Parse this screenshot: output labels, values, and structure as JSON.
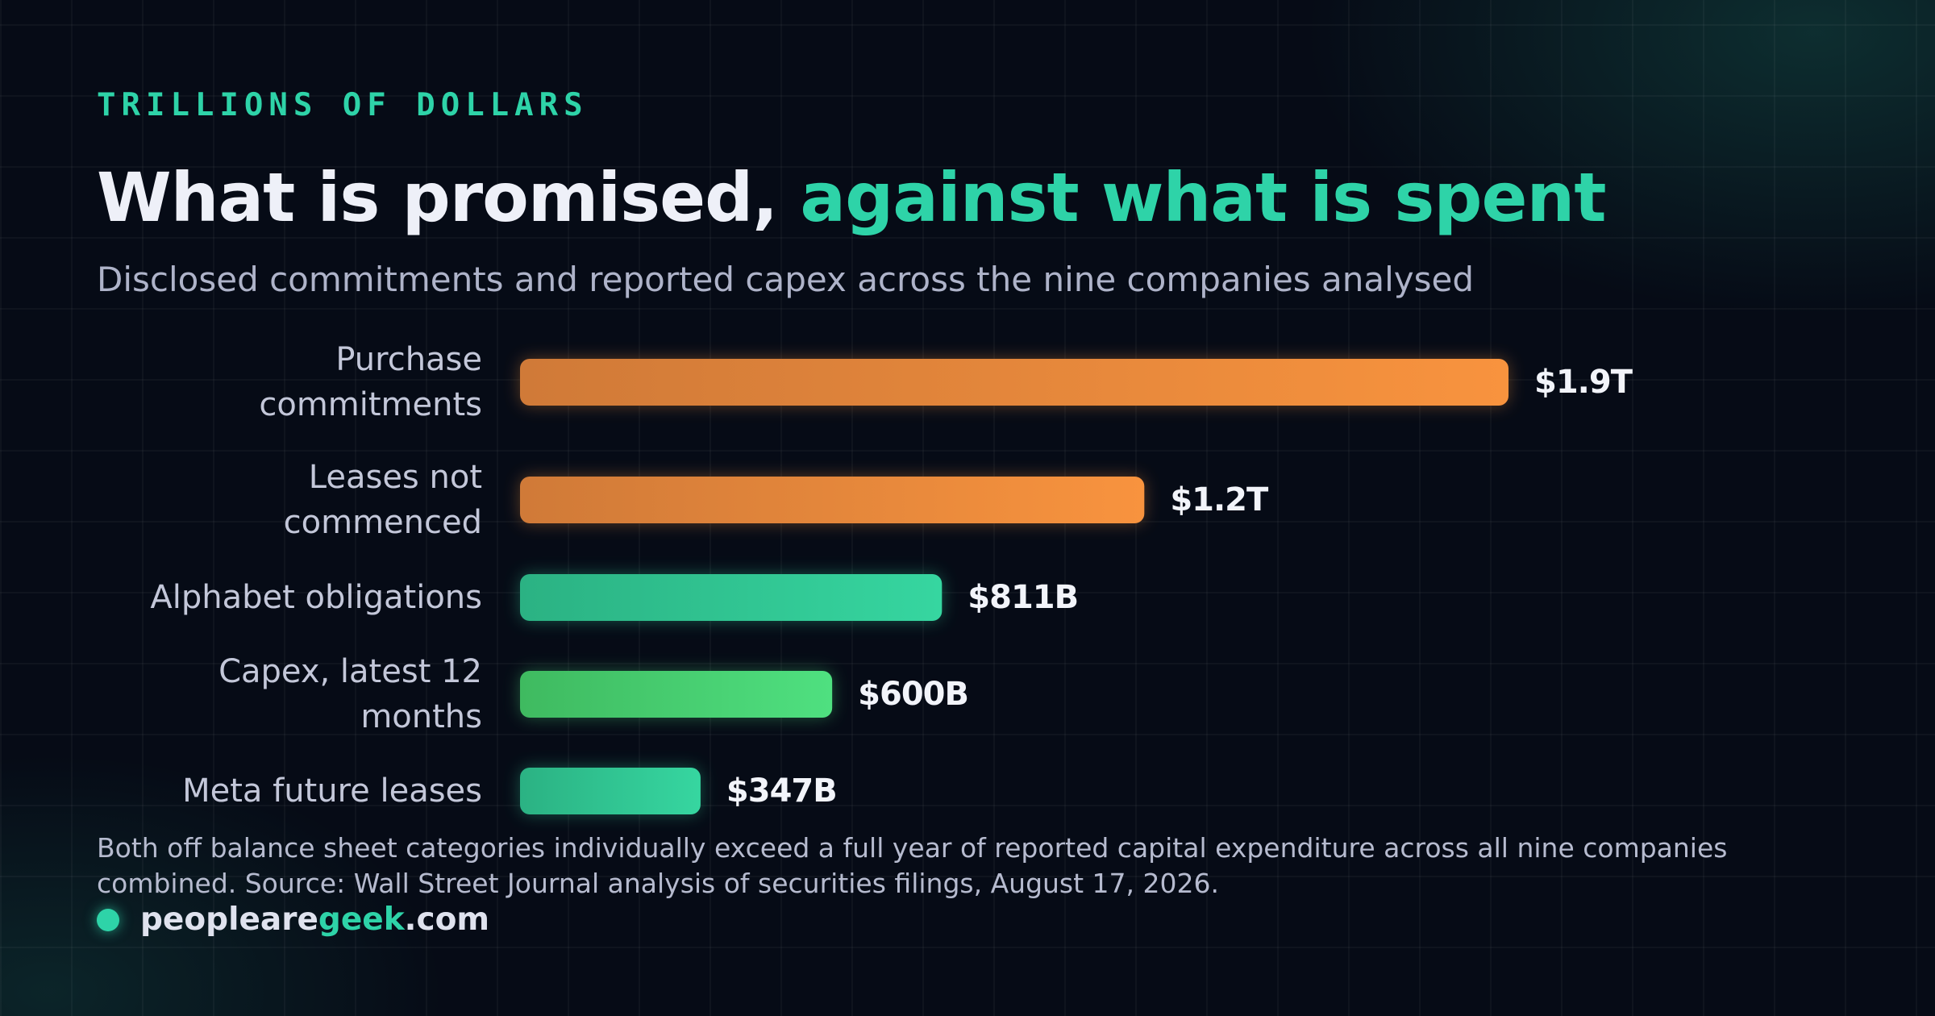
{
  "header": {
    "eyebrow": "TRILLIONS OF DOLLARS",
    "title_main": "What is promised, ",
    "title_accent": "against what is spent",
    "subtitle": "Disclosed commitments and reported capex across the nine companies analysed"
  },
  "chart_data": {
    "type": "bar",
    "orientation": "horizontal",
    "unit": "trillions of dollars",
    "categories": [
      [
        "Purchase",
        "commitments"
      ],
      [
        "Leases not",
        "commenced"
      ],
      [
        "Alphabet obligations"
      ],
      [
        "Capex, latest 12",
        "months"
      ],
      [
        "Meta future leases"
      ]
    ],
    "values": [
      1.9,
      1.2,
      0.811,
      0.6,
      0.347
    ],
    "value_labels": [
      "$1.9T",
      "$1.2T",
      "$811B",
      "$600B",
      "$347B"
    ],
    "bar_colors": [
      [
        "#d07a38",
        "#f8933e"
      ],
      [
        "#d07a38",
        "#f8933e"
      ],
      [
        "#2bb283",
        "#36d6a0"
      ],
      [
        "#3fba60",
        "#4fe080"
      ],
      [
        "#2bb283",
        "#36d6a0"
      ]
    ],
    "xlim": [
      0,
      1.9
    ],
    "axes_visible": false,
    "grid": false,
    "legend": "none"
  },
  "footnote": "Both off balance sheet categories individually exceed a full year of reported capital expenditure across all nine companies combined. Source: Wall Street Journal analysis of securities filings, August 17, 2026.",
  "brand": {
    "prefix": "peopleare",
    "highlight": "geek",
    "suffix": ".com"
  },
  "colors": {
    "background": "#060b16",
    "accent_teal": "#2ed3a8",
    "accent_orange": "#f8933e",
    "title_text": "#eef0f8",
    "muted_text": "#aeb3c9"
  }
}
